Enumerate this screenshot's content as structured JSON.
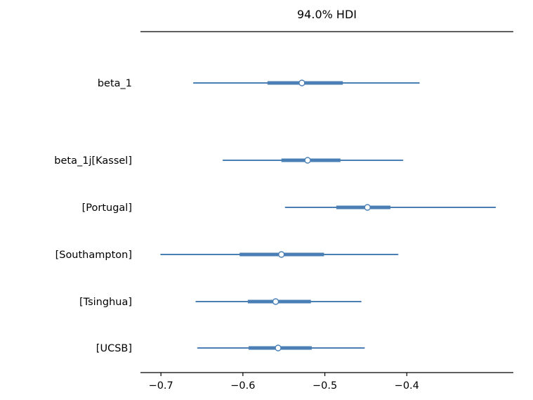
{
  "chart_data": {
    "type": "forest",
    "title": "94.0% HDI",
    "xlabel": "",
    "ylabel": "",
    "xlim": [
      -0.725,
      -0.27
    ],
    "xticks": [
      -0.7,
      -0.6,
      -0.5,
      -0.4
    ],
    "xtick_labels": [
      "−0.7",
      "−0.6",
      "−0.5",
      "−0.4"
    ],
    "grid": false,
    "legend": "none",
    "line_color": "#4a7fb5",
    "axis_color": "#000000",
    "marker_fill": "#ffffff",
    "rows": [
      {
        "label": "beta_1",
        "hdi": [
          -0.66,
          -0.385
        ],
        "quartile": [
          -0.57,
          -0.478
        ],
        "point": -0.528
      },
      {
        "label": "beta_1j[Kassel]",
        "hdi": [
          -0.624,
          -0.405
        ],
        "quartile": [
          -0.553,
          -0.481
        ],
        "point": -0.521
      },
      {
        "label": "[Portugal]",
        "hdi": [
          -0.548,
          -0.292
        ],
        "quartile": [
          -0.486,
          -0.42
        ],
        "point": -0.448
      },
      {
        "label": "[Southampton]",
        "hdi": [
          -0.7,
          -0.411
        ],
        "quartile": [
          -0.604,
          -0.501
        ],
        "point": -0.553
      },
      {
        "label": "[Tsinghua]",
        "hdi": [
          -0.657,
          -0.456
        ],
        "quartile": [
          -0.594,
          -0.517
        ],
        "point": -0.56
      },
      {
        "label": "[UCSB]",
        "hdi": [
          -0.655,
          -0.452
        ],
        "quartile": [
          -0.593,
          -0.516
        ],
        "point": -0.557
      }
    ]
  }
}
